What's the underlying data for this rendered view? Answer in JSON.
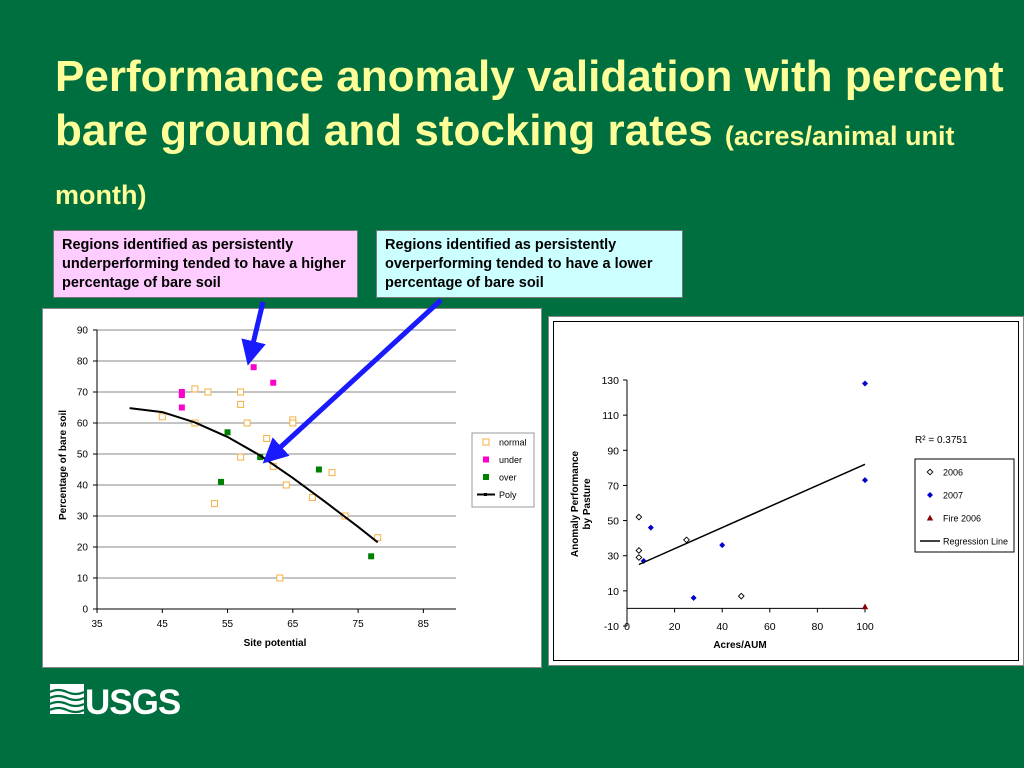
{
  "slide": {
    "title_main": "Performance anomaly validation with percent bare ground and stocking rates",
    "title_sub": "(acres/animal unit month)",
    "colors": {
      "background": "#006f3f",
      "title": "#ffff99",
      "arrow": "#1a1aff"
    }
  },
  "callouts": {
    "under_text": "Regions identified as persistently underperforming tended to have a higher percentage of bare soil",
    "under_color": "#ffccff",
    "over_text": "Regions identified as persistently overperforming tended to have a lower percentage of bare soil",
    "over_color": "#ccffff"
  },
  "logo": {
    "text": "USGS",
    "icon": "usgs-wave-icon"
  },
  "chart_data": [
    {
      "type": "scatter",
      "title": "",
      "xlabel": "Site potential",
      "ylabel": "Percentage of bare soil",
      "xlim": [
        35,
        90
      ],
      "ylim": [
        0,
        90
      ],
      "xticks": [
        35,
        45,
        55,
        65,
        75,
        85
      ],
      "yticks": [
        0,
        10,
        20,
        30,
        40,
        50,
        60,
        70,
        80,
        90
      ],
      "grid": true,
      "legend": "right",
      "series": [
        {
          "name": "normal",
          "marker": "square-open",
          "color": "#f5b041",
          "points": [
            [
              45,
              62
            ],
            [
              50,
              71
            ],
            [
              50,
              60
            ],
            [
              52,
              70
            ],
            [
              53,
              34
            ],
            [
              57,
              70
            ],
            [
              57,
              66
            ],
            [
              57,
              49
            ],
            [
              58,
              60
            ],
            [
              61,
              55
            ],
            [
              62,
              46
            ],
            [
              64,
              40
            ],
            [
              65,
              61
            ],
            [
              65,
              60
            ],
            [
              68,
              36
            ],
            [
              71,
              44
            ],
            [
              73,
              30
            ],
            [
              78,
              23
            ],
            [
              63,
              10
            ]
          ]
        },
        {
          "name": "under",
          "marker": "square",
          "color": "#ff00cc",
          "points": [
            [
              48,
              70
            ],
            [
              48,
              69
            ],
            [
              48,
              65
            ],
            [
              59,
              78
            ],
            [
              62,
              73
            ]
          ]
        },
        {
          "name": "over",
          "marker": "square",
          "color": "#008000",
          "points": [
            [
              54,
              41
            ],
            [
              55,
              57
            ],
            [
              60,
              49
            ],
            [
              69,
              45
            ],
            [
              77,
              17
            ]
          ]
        },
        {
          "name": "Poly",
          "marker": "line",
          "color": "#000000",
          "points": [
            [
              40,
              64.8
            ],
            [
              45,
              63.5
            ],
            [
              50,
              60.2
            ],
            [
              55,
              55.5
            ],
            [
              60,
              49.5
            ],
            [
              65,
              42.3
            ],
            [
              70,
              34.5
            ],
            [
              75,
              26.5
            ],
            [
              78,
              21.5
            ]
          ]
        }
      ]
    },
    {
      "type": "scatter",
      "title": "",
      "xlabel": "Acres/AUM",
      "ylabel_line1": "Anomaly Performance",
      "ylabel_line2": "by Pasture",
      "xlim": [
        0,
        100
      ],
      "ylim": [
        -10,
        130
      ],
      "xticks": [
        0,
        20,
        40,
        60,
        80,
        100
      ],
      "yticks": [
        -10,
        10,
        30,
        50,
        70,
        90,
        110,
        130
      ],
      "grid": false,
      "legend": "right",
      "annotation": "R² = 0.3751",
      "series": [
        {
          "name": "2006",
          "marker": "diamond-open",
          "color": "#000000",
          "points": [
            [
              5,
              52
            ],
            [
              5,
              33
            ],
            [
              5,
              29
            ],
            [
              25,
              39
            ],
            [
              48,
              7
            ]
          ]
        },
        {
          "name": "2007",
          "marker": "diamond",
          "color": "#0000cc",
          "points": [
            [
              7,
              27
            ],
            [
              10,
              46
            ],
            [
              28,
              6
            ],
            [
              40,
              36
            ],
            [
              100,
              128
            ],
            [
              100,
              73
            ]
          ]
        },
        {
          "name": "Fire 2006",
          "marker": "triangle",
          "color": "#8b0000",
          "points": [
            [
              100,
              1
            ]
          ]
        },
        {
          "name": "Regression Line",
          "marker": "line",
          "color": "#000000",
          "points": [
            [
              5,
              25
            ],
            [
              100,
              82
            ]
          ]
        }
      ]
    }
  ]
}
